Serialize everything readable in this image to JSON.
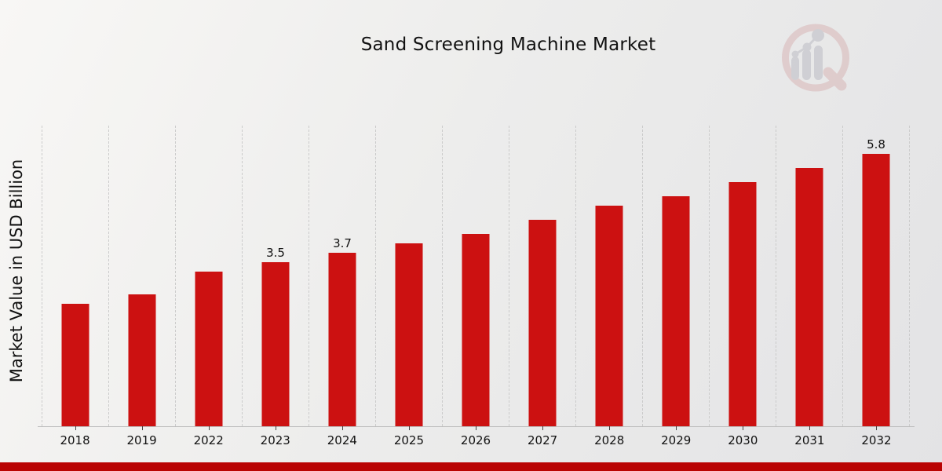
{
  "title": "Sand Screening Machine Market",
  "y_axis_label": "Market Value in USD Billion",
  "logo": "market-research-magnifier-watermark",
  "colors": {
    "bar": "#cc1111",
    "bottom_strip": "#b90303",
    "gridline": "#cbcbcb",
    "axis_line": "#bdbdbd",
    "text": "#111111",
    "logo_ring": "#d5abac",
    "logo_bars": "#b3b3bb"
  },
  "chart_data": {
    "type": "bar",
    "title": "Sand Screening Machine Market",
    "xlabel": "",
    "ylabel": "Market Value in USD Billion",
    "unit": "USD Billion",
    "categories": [
      "2018",
      "2019",
      "2022",
      "2023",
      "2024",
      "2025",
      "2026",
      "2027",
      "2028",
      "2029",
      "2030",
      "2031",
      "2032"
    ],
    "values": [
      2.6,
      2.8,
      3.3,
      3.5,
      3.7,
      3.9,
      4.1,
      4.4,
      4.7,
      4.9,
      5.2,
      5.5,
      5.8
    ],
    "data_labels": [
      "",
      "",
      "",
      "3.5",
      "3.7",
      "",
      "",
      "",
      "",
      "",
      "",
      "",
      "5.8"
    ],
    "ylim": [
      0,
      6.4
    ],
    "grid": "vertical-dashed",
    "legend": "none",
    "bar_color": "#cc1111"
  }
}
